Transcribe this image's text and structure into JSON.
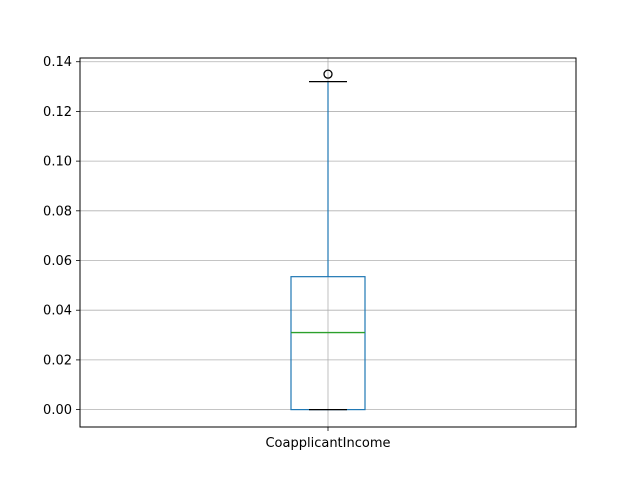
{
  "chart_data": {
    "type": "box",
    "title": "",
    "xlabel": "",
    "ylabel": "",
    "categories": [
      "CoapplicantIncome"
    ],
    "ylim": [
      -0.007,
      0.1415
    ],
    "yticks": [
      0.0,
      0.02,
      0.04,
      0.06,
      0.08,
      0.1,
      0.12,
      0.14
    ],
    "ytick_labels": [
      "0.00",
      "0.02",
      "0.04",
      "0.06",
      "0.08",
      "0.10",
      "0.12",
      "0.14"
    ],
    "grid": true,
    "boxes": [
      {
        "category": "CoapplicantIncome",
        "whisker_low": 0.0,
        "q1": 0.0,
        "median": 0.031,
        "q3": 0.0535,
        "whisker_high": 0.132,
        "outliers": [
          0.135
        ]
      }
    ],
    "colors": {
      "box": "#1f77b4",
      "whisker": "#1f77b4",
      "cap": "#000000",
      "median": "#2ca02c",
      "grid": "#b0b0b0",
      "outlier": "#000000"
    }
  }
}
